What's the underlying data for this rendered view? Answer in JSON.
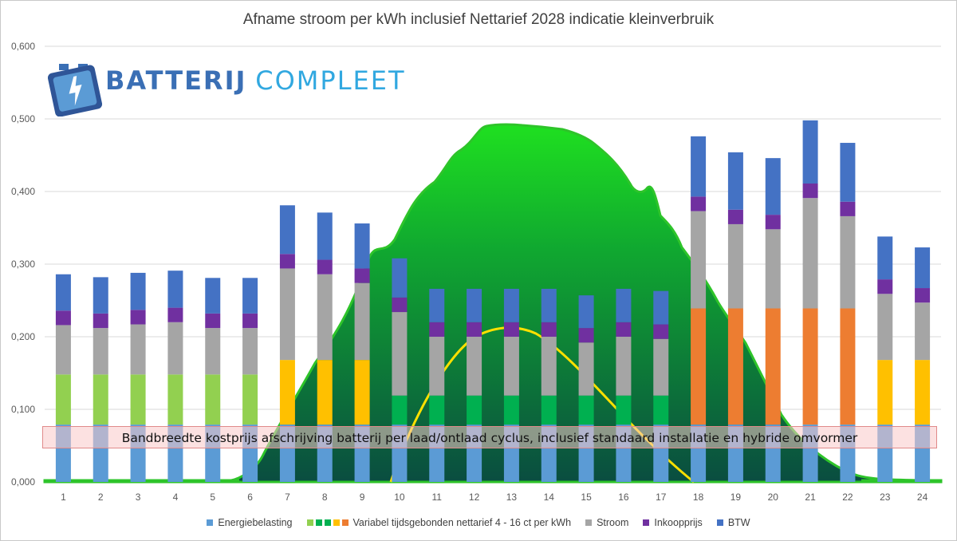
{
  "chart_data": {
    "type": "bar",
    "stacked": true,
    "title": "Afname stroom per kWh inclusief Nettarief 2028 indicatie kleinverbruik",
    "categories": [
      "1",
      "2",
      "3",
      "4",
      "5",
      "6",
      "7",
      "8",
      "9",
      "10",
      "11",
      "12",
      "13",
      "14",
      "15",
      "16",
      "17",
      "18",
      "19",
      "20",
      "21",
      "22",
      "23",
      "24"
    ],
    "ylim": [
      0,
      0.6
    ],
    "yticks": [
      0,
      0.1,
      0.2,
      0.3,
      0.4,
      0.5,
      0.6
    ],
    "ytick_labels": [
      "0,000",
      "0,100",
      "0,200",
      "0,300",
      "0,400",
      "0,500",
      "0,600"
    ],
    "grid": true,
    "series": [
      {
        "name": "Energiebelasting",
        "color": "#5b9bd5",
        "values": [
          0.079,
          0.079,
          0.079,
          0.079,
          0.079,
          0.079,
          0.079,
          0.079,
          0.079,
          0.079,
          0.079,
          0.079,
          0.079,
          0.079,
          0.079,
          0.079,
          0.079,
          0.079,
          0.079,
          0.079,
          0.079,
          0.079,
          0.079,
          0.079
        ]
      },
      {
        "name": "Variabel tijdsgebonden nettarief 4 - 16 ct per kWh",
        "values": [
          0.069,
          0.069,
          0.069,
          0.069,
          0.069,
          0.069,
          0.089,
          0.089,
          0.089,
          0.04,
          0.04,
          0.04,
          0.04,
          0.04,
          0.04,
          0.04,
          0.04,
          0.16,
          0.16,
          0.16,
          0.16,
          0.16,
          0.089,
          0.089
        ],
        "colors": [
          "#92d050",
          "#92d050",
          "#92d050",
          "#92d050",
          "#92d050",
          "#92d050",
          "#ffc000",
          "#ffc000",
          "#ffc000",
          "#00b050",
          "#00b050",
          "#00b050",
          "#00b050",
          "#00b050",
          "#00b050",
          "#00b050",
          "#00b050",
          "#ed7d31",
          "#ed7d31",
          "#ed7d31",
          "#ed7d31",
          "#ed7d31",
          "#ffc000",
          "#ffc000"
        ]
      },
      {
        "name": "Stroom",
        "color": "#a5a5a5",
        "values": [
          0.068,
          0.064,
          0.069,
          0.072,
          0.064,
          0.064,
          0.126,
          0.118,
          0.106,
          0.115,
          0.081,
          0.081,
          0.081,
          0.081,
          0.073,
          0.081,
          0.078,
          0.134,
          0.116,
          0.109,
          0.152,
          0.127,
          0.091,
          0.079
        ]
      },
      {
        "name": "Inkoopprijs",
        "color": "#7030a0",
        "values": [
          0.02,
          0.02,
          0.02,
          0.02,
          0.02,
          0.02,
          0.02,
          0.02,
          0.02,
          0.02,
          0.02,
          0.02,
          0.02,
          0.02,
          0.02,
          0.02,
          0.02,
          0.02,
          0.02,
          0.02,
          0.02,
          0.02,
          0.02,
          0.02
        ]
      },
      {
        "name": "BTW",
        "color": "#4472c4",
        "values": [
          0.05,
          0.05,
          0.051,
          0.051,
          0.049,
          0.049,
          0.067,
          0.065,
          0.062,
          0.054,
          0.046,
          0.046,
          0.046,
          0.046,
          0.045,
          0.046,
          0.046,
          0.083,
          0.079,
          0.078,
          0.087,
          0.081,
          0.059,
          0.056
        ]
      }
    ],
    "legend_position": "bottom",
    "legend_variabel_colors": [
      "#92d050",
      "#00b050",
      "#00b050",
      "#ffc000",
      "#ed7d31"
    ],
    "background_area": {
      "description_color": "#00b000"
    },
    "annotation": "Bandbreedte kostprijs afschrijving batterij per laad/ontlaad cyclus, inclusief standaard installatie en hybride omvormer"
  },
  "logo": {
    "word1": "BATTERIJ",
    "word2": "COMPLEET",
    "color_primary": "#3a6fb5",
    "color_secondary": "#31a8e0"
  }
}
